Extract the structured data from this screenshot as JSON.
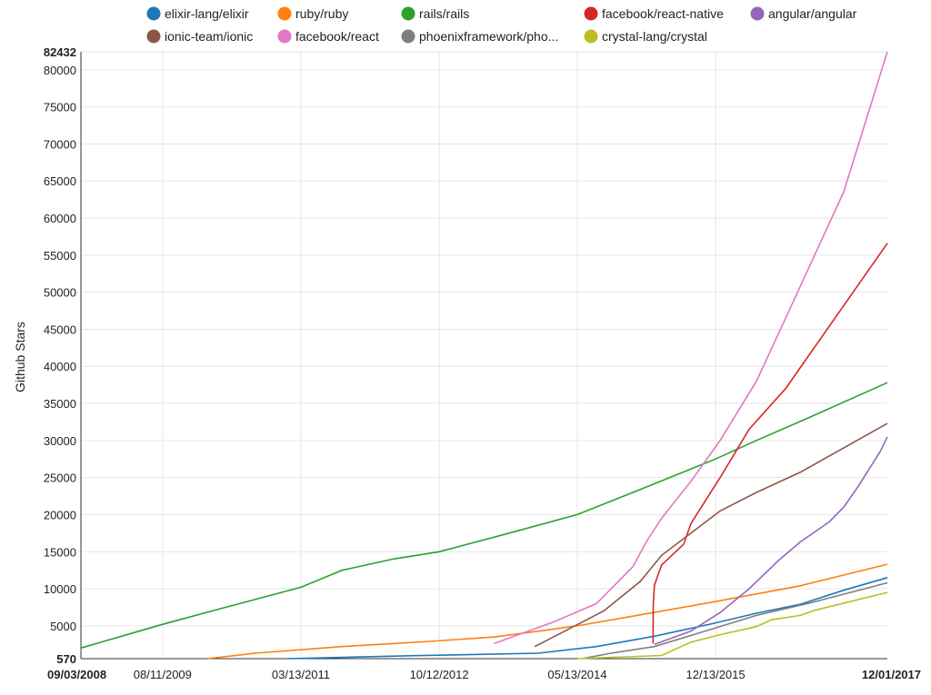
{
  "chart_data": {
    "type": "line",
    "ylabel": "Github Stars",
    "ylim": [
      570,
      82432
    ],
    "xlim": [
      "2008-09-03",
      "2017-12-01"
    ],
    "x_ticks": [
      "09/03/2008",
      "08/11/2009",
      "03/13/2011",
      "10/12/2012",
      "05/13/2014",
      "12/13/2015",
      "12/01/2017"
    ],
    "y_ticks": [
      570,
      5000,
      10000,
      15000,
      20000,
      25000,
      30000,
      35000,
      40000,
      45000,
      50000,
      55000,
      60000,
      65000,
      70000,
      75000,
      80000,
      82432
    ],
    "grid": true,
    "legend_position": "top",
    "series": [
      {
        "name": "elixir-lang/elixir",
        "color": "#1f77b4",
        "points": [
          [
            "2011-01-15",
            570
          ],
          [
            "2012-07-01",
            980
          ],
          [
            "2013-12-01",
            1300
          ],
          [
            "2014-08-01",
            2200
          ],
          [
            "2015-04-01",
            3600
          ],
          [
            "2015-12-01",
            5300
          ],
          [
            "2016-06-01",
            6700
          ],
          [
            "2016-12-01",
            7900
          ],
          [
            "2017-06-01",
            9800
          ],
          [
            "2017-12-01",
            11500
          ]
        ]
      },
      {
        "name": "ruby/ruby",
        "color": "#ff7f0e",
        "points": [
          [
            "2010-02-15",
            570
          ],
          [
            "2010-09-01",
            1300
          ],
          [
            "2011-09-01",
            2200
          ],
          [
            "2012-09-01",
            2900
          ],
          [
            "2013-06-01",
            3500
          ],
          [
            "2014-01-01",
            4400
          ],
          [
            "2014-06-01",
            5100
          ],
          [
            "2015-01-01",
            6300
          ],
          [
            "2015-12-01",
            8200
          ],
          [
            "2016-12-01",
            10400
          ],
          [
            "2017-12-01",
            13300
          ]
        ]
      },
      {
        "name": "rails/rails",
        "color": "#2ca02c",
        "points": [
          [
            "2008-09-03",
            2000
          ],
          [
            "2009-08-11",
            5200
          ],
          [
            "2010-05-01",
            7500
          ],
          [
            "2011-03-13",
            10200
          ],
          [
            "2011-09-01",
            12500
          ],
          [
            "2012-04-01",
            14000
          ],
          [
            "2012-10-12",
            15000
          ],
          [
            "2013-08-01",
            17500
          ],
          [
            "2014-05-13",
            20000
          ],
          [
            "2015-01-01",
            23000
          ],
          [
            "2015-12-13",
            27500
          ],
          [
            "2016-06-01",
            30000
          ],
          [
            "2017-01-01",
            33000
          ],
          [
            "2017-12-01",
            37800
          ]
        ]
      },
      {
        "name": "facebook/react-native",
        "color": "#d62728",
        "points": [
          [
            "2015-03-26",
            2600
          ],
          [
            "2015-03-27",
            7800
          ],
          [
            "2015-04-01",
            10500
          ],
          [
            "2015-05-01",
            13200
          ],
          [
            "2015-08-01",
            16000
          ],
          [
            "2015-09-01",
            18800
          ],
          [
            "2016-01-01",
            25000
          ],
          [
            "2016-05-01",
            31500
          ],
          [
            "2016-10-01",
            37000
          ],
          [
            "2017-12-01",
            56600
          ]
        ]
      },
      {
        "name": "angular/angular",
        "color": "#9467bd",
        "points": [
          [
            "2015-04-01",
            2500
          ],
          [
            "2015-09-01",
            4300
          ],
          [
            "2016-01-01",
            6800
          ],
          [
            "2016-05-01",
            10000
          ],
          [
            "2016-09-01",
            13800
          ],
          [
            "2016-12-01",
            16300
          ],
          [
            "2017-04-01",
            19000
          ],
          [
            "2017-06-01",
            21000
          ],
          [
            "2017-08-01",
            23800
          ],
          [
            "2017-11-01",
            28500
          ],
          [
            "2017-12-01",
            30500
          ]
        ]
      },
      {
        "name": "ionic-team/ionic",
        "color": "#8c564b",
        "points": [
          [
            "2013-11-16",
            2200
          ],
          [
            "2014-09-01",
            7000
          ],
          [
            "2015-02-01",
            11000
          ],
          [
            "2015-05-01",
            14500
          ],
          [
            "2015-09-01",
            17500
          ],
          [
            "2016-01-01",
            20500
          ],
          [
            "2016-06-01",
            23000
          ],
          [
            "2016-12-01",
            25700
          ],
          [
            "2017-12-01",
            32300
          ]
        ]
      },
      {
        "name": "facebook/react",
        "color": "#e377c2",
        "points": [
          [
            "2013-05-29",
            2600
          ],
          [
            "2014-02-01",
            5500
          ],
          [
            "2014-08-01",
            8000
          ],
          [
            "2015-01-01",
            13000
          ],
          [
            "2015-03-01",
            16500
          ],
          [
            "2015-05-01",
            19500
          ],
          [
            "2015-09-01",
            24500
          ],
          [
            "2016-01-01",
            30000
          ],
          [
            "2016-06-01",
            38000
          ],
          [
            "2016-10-01",
            46500
          ],
          [
            "2017-06-01",
            63500
          ],
          [
            "2017-12-01",
            82432
          ]
        ]
      },
      {
        "name": "phoenixframework/pho...",
        "color": "#7f7f7f",
        "points": [
          [
            "2014-06-01",
            570
          ],
          [
            "2014-10-01",
            1300
          ],
          [
            "2015-04-01",
            2200
          ],
          [
            "2015-12-01",
            4600
          ],
          [
            "2016-06-01",
            6400
          ],
          [
            "2017-01-01",
            8000
          ],
          [
            "2017-12-01",
            10800
          ]
        ]
      },
      {
        "name": "crystal-lang/crystal",
        "color": "#bcbd22",
        "points": [
          [
            "2014-05-13",
            570
          ],
          [
            "2015-05-01",
            1000
          ],
          [
            "2015-09-01",
            2800
          ],
          [
            "2016-01-01",
            3800
          ],
          [
            "2016-06-01",
            4900
          ],
          [
            "2016-08-01",
            5800
          ],
          [
            "2016-12-01",
            6400
          ],
          [
            "2017-02-01",
            7100
          ],
          [
            "2017-12-01",
            9500
          ]
        ]
      }
    ]
  }
}
